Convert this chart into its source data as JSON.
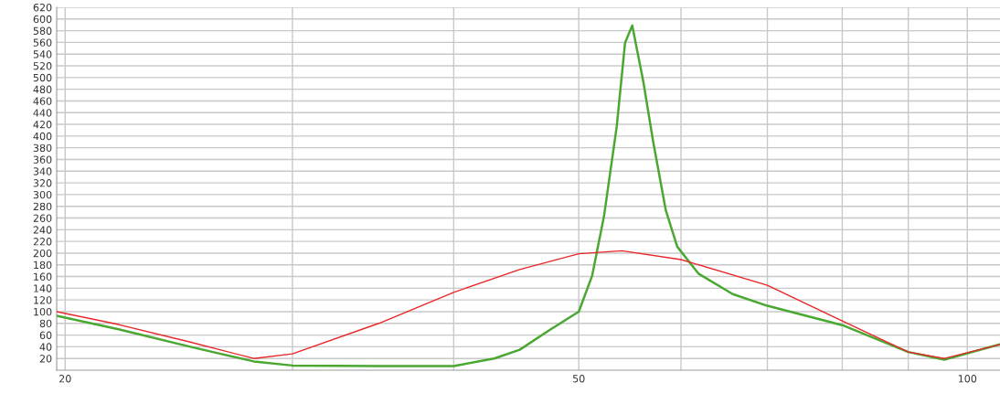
{
  "chart_data": {
    "type": "line",
    "log": "x",
    "grid": true,
    "marker": "none",
    "line_style": "solid",
    "xlim": [
      19.7,
      106
    ],
    "xticks": [
      20,
      {
        "value": 30,
        "label": null
      },
      {
        "value": 40,
        "label": null
      },
      50,
      {
        "value": 60,
        "label": null
      },
      {
        "value": 70,
        "label": null
      },
      {
        "value": 80,
        "label": null
      },
      {
        "value": 90,
        "label": null
      },
      100
    ],
    "ylim": [
      0,
      620
    ],
    "yticks": [
      20,
      40,
      60,
      80,
      100,
      120,
      140,
      160,
      180,
      200,
      220,
      240,
      260,
      280,
      300,
      320,
      340,
      360,
      380,
      400,
      420,
      440,
      460,
      480,
      500,
      520,
      540,
      560,
      580,
      600,
      620
    ],
    "series": [
      {
        "color": "#e8262a",
        "x": [
          19.7,
          22,
          25,
          28,
          30,
          35,
          40,
          45,
          50,
          54,
          60,
          70,
          80,
          90,
          96,
          106
        ],
        "values": [
          100,
          78,
          48,
          20,
          28,
          80,
          133,
          172,
          199,
          204,
          189,
          145,
          84,
          31,
          20,
          44
        ]
      },
      {
        "color": "#4aa832",
        "x": [
          19.7,
          22,
          25,
          28,
          30,
          35,
          40,
          43,
          45,
          47.5,
          50,
          51.2,
          52.3,
          53.5,
          54.3,
          55,
          56.1,
          57.1,
          58.4,
          59.6,
          61.9,
          65.8,
          70,
          80,
          90,
          96,
          106
        ],
        "values": [
          93,
          70,
          40,
          15,
          8,
          7,
          7,
          20,
          35,
          69,
          100,
          161,
          263,
          416,
          559,
          589,
          493,
          390,
          273,
          211,
          165,
          130,
          110,
          77,
          31,
          18,
          44
        ]
      }
    ]
  }
}
